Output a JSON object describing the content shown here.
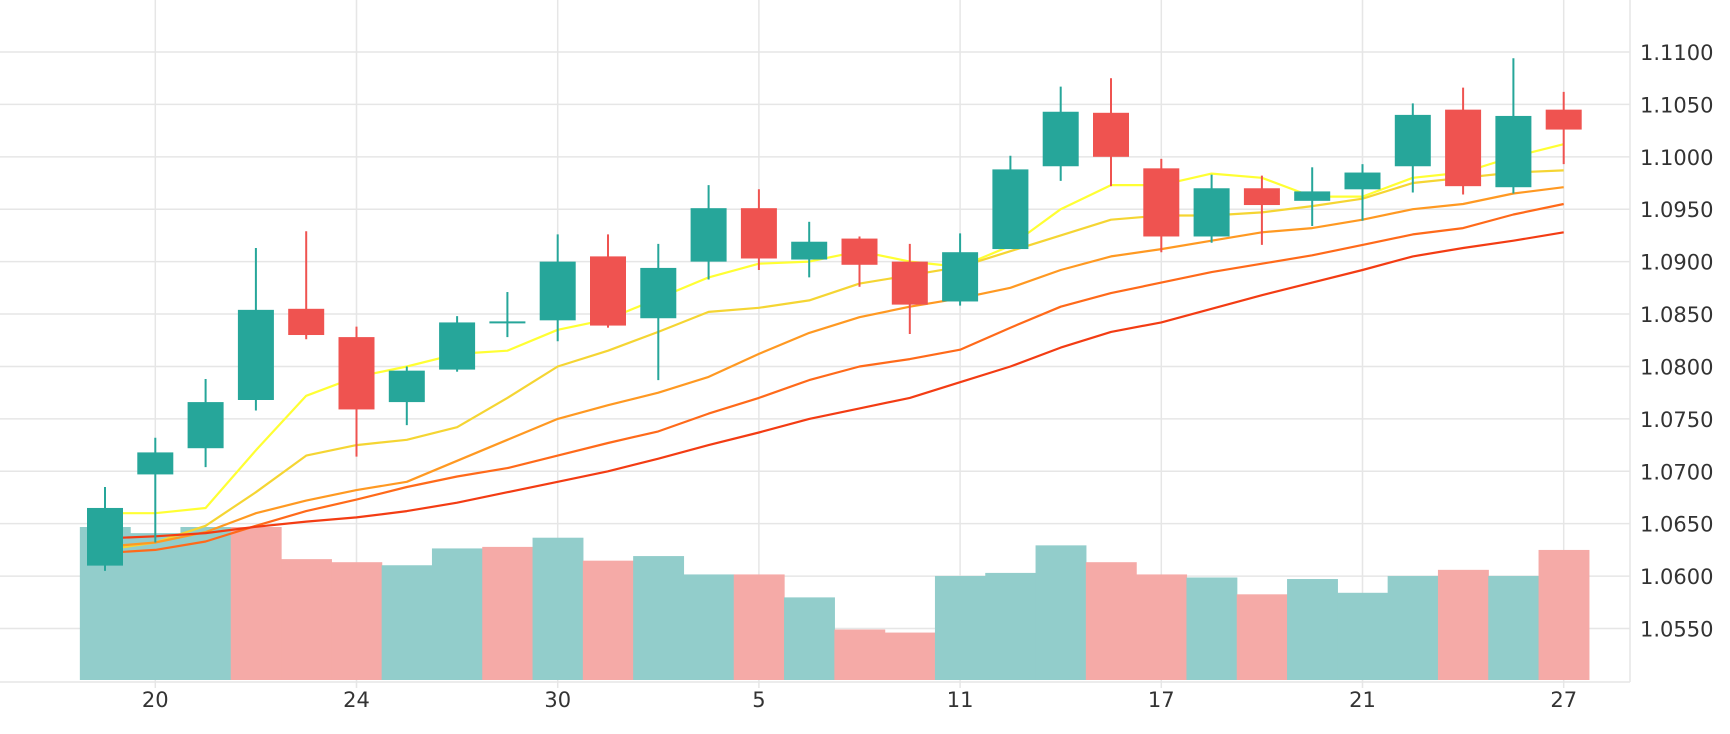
{
  "colors": {
    "up": "#26a69a",
    "down": "#ef5350",
    "volume_up": "#92cdcb",
    "volume_down": "#f5aaa7",
    "grid": "#e6e6e6",
    "ma1": "#ffff33",
    "ma2": "#f5d533",
    "ma3": "#ff9922",
    "ma4": "#ff6a1a",
    "ma5": "#f33c13"
  },
  "chart_data": {
    "type": "candlestick",
    "grid": true,
    "y_ticks": [
      "1.0550",
      "1.0600",
      "1.0650",
      "1.0700",
      "1.0750",
      "1.0800",
      "1.0850",
      "1.0900",
      "1.0950",
      "1.1000",
      "1.1050",
      "1.1100"
    ],
    "ylim": [
      1.05,
      1.115
    ],
    "x_ticks": [
      {
        "label": "20",
        "index": 1
      },
      {
        "label": "24",
        "index": 5
      },
      {
        "label": "30",
        "index": 9
      },
      {
        "label": "5",
        "index": 13
      },
      {
        "label": "11",
        "index": 17
      },
      {
        "label": "17",
        "index": 21
      },
      {
        "label": "21",
        "index": 25
      },
      {
        "label": "27",
        "index": 29
      }
    ],
    "candles": [
      {
        "o": 1.061,
        "h": 1.0685,
        "l": 1.0605,
        "c": 1.0665
      },
      {
        "o": 1.0697,
        "h": 1.0732,
        "l": 1.0632,
        "c": 1.0718
      },
      {
        "o": 1.0722,
        "h": 1.0788,
        "l": 1.0704,
        "c": 1.0766
      },
      {
        "o": 1.0768,
        "h": 1.0913,
        "l": 1.0758,
        "c": 1.0854
      },
      {
        "o": 1.0855,
        "h": 1.0929,
        "l": 1.0826,
        "c": 1.083
      },
      {
        "o": 1.0828,
        "h": 1.0838,
        "l": 1.0714,
        "c": 1.0759
      },
      {
        "o": 1.0766,
        "h": 1.08,
        "l": 1.0744,
        "c": 1.0796
      },
      {
        "o": 1.0797,
        "h": 1.0848,
        "l": 1.0795,
        "c": 1.0842
      },
      {
        "o": 1.0843,
        "h": 1.0871,
        "l": 1.0828,
        "c": 1.0843
      },
      {
        "o": 1.0844,
        "h": 1.0926,
        "l": 1.0824,
        "c": 1.09
      },
      {
        "o": 1.0905,
        "h": 1.0926,
        "l": 1.0837,
        "c": 1.0839
      },
      {
        "o": 1.0846,
        "h": 1.0917,
        "l": 1.0787,
        "c": 1.0894
      },
      {
        "o": 1.09,
        "h": 1.0973,
        "l": 1.0883,
        "c": 1.0951
      },
      {
        "o": 1.0951,
        "h": 1.0969,
        "l": 1.0892,
        "c": 1.0903
      },
      {
        "o": 1.0902,
        "h": 1.0938,
        "l": 1.0885,
        "c": 1.0919
      },
      {
        "o": 1.0922,
        "h": 1.0924,
        "l": 1.0876,
        "c": 1.0897
      },
      {
        "o": 1.09,
        "h": 1.0917,
        "l": 1.0831,
        "c": 1.0859
      },
      {
        "o": 1.0862,
        "h": 1.0927,
        "l": 1.0858,
        "c": 1.0909
      },
      {
        "o": 1.0912,
        "h": 1.1001,
        "l": 1.0912,
        "c": 1.0988
      },
      {
        "o": 1.0991,
        "h": 1.1067,
        "l": 1.0977,
        "c": 1.1043
      },
      {
        "o": 1.1042,
        "h": 1.1075,
        "l": 1.0972,
        "c": 1.1
      },
      {
        "o": 1.0989,
        "h": 1.0998,
        "l": 1.0909,
        "c": 1.0924
      },
      {
        "o": 1.0924,
        "h": 1.0983,
        "l": 1.0918,
        "c": 1.097
      },
      {
        "o": 1.097,
        "h": 1.0982,
        "l": 1.0916,
        "c": 1.0954
      },
      {
        "o": 1.0958,
        "h": 1.099,
        "l": 1.0934,
        "c": 1.0967
      },
      {
        "o": 1.0969,
        "h": 1.0993,
        "l": 1.0939,
        "c": 1.0985
      },
      {
        "o": 1.0991,
        "h": 1.1051,
        "l": 1.0966,
        "c": 1.104
      },
      {
        "o": 1.1045,
        "h": 1.1066,
        "l": 1.0964,
        "c": 1.0972
      },
      {
        "o": 1.0971,
        "h": 1.1094,
        "l": 1.0965,
        "c": 1.1039
      },
      {
        "o": 1.1045,
        "h": 1.1062,
        "l": 1.0993,
        "c": 1.1026
      }
    ],
    "volume": {
      "max": 100,
      "values": [
        100,
        96,
        100,
        100,
        79,
        77,
        75,
        86,
        87,
        93,
        78,
        81,
        69,
        69,
        54,
        33,
        31,
        68,
        70,
        88,
        77,
        69,
        67,
        56,
        66,
        57,
        68,
        72,
        68,
        85
      ],
      "directions": [
        "up",
        "up",
        "up",
        "down",
        "down",
        "down",
        "up",
        "up",
        "down",
        "up",
        "down",
        "up",
        "up",
        "down",
        "up",
        "down",
        "down",
        "up",
        "up",
        "up",
        "down",
        "down",
        "up",
        "down",
        "up",
        "up",
        "up",
        "down",
        "up",
        "down"
      ]
    },
    "moving_averages": [
      {
        "color_key": "ma1",
        "values": [
          1.066,
          1.066,
          1.0665,
          1.072,
          1.0772,
          1.079,
          1.08,
          1.0812,
          1.0815,
          1.0835,
          1.0845,
          1.0865,
          1.0885,
          1.0898,
          1.09,
          1.091,
          1.09,
          1.0895,
          1.0915,
          1.095,
          1.0973,
          1.0973,
          1.0984,
          1.098,
          1.0962,
          1.0962,
          1.098,
          1.0985,
          1.1,
          1.1012
        ]
      },
      {
        "color_key": "ma2",
        "values": [
          1.0625,
          1.0632,
          1.0648,
          1.068,
          1.0715,
          1.0725,
          1.073,
          1.0742,
          1.077,
          1.08,
          1.0815,
          1.0833,
          1.0852,
          1.0856,
          1.0863,
          1.0879,
          1.0887,
          1.0895,
          1.091,
          1.0925,
          1.094,
          1.0944,
          1.0944,
          1.0947,
          1.0953,
          1.096,
          1.0975,
          1.098,
          1.0985,
          1.0987
        ]
      },
      {
        "color_key": "ma3",
        "values": [
          1.0628,
          1.0632,
          1.0642,
          1.066,
          1.0672,
          1.0682,
          1.069,
          1.071,
          1.073,
          1.075,
          1.0763,
          1.0775,
          1.079,
          1.0812,
          1.0832,
          1.0847,
          1.0857,
          1.0865,
          1.0875,
          1.0892,
          1.0905,
          1.0912,
          1.092,
          1.0928,
          1.0932,
          1.094,
          1.095,
          1.0955,
          1.0965,
          1.0971
        ]
      },
      {
        "color_key": "ma4",
        "values": [
          1.0622,
          1.0625,
          1.0633,
          1.0648,
          1.0662,
          1.0673,
          1.0685,
          1.0695,
          1.0703,
          1.0715,
          1.0727,
          1.0738,
          1.0755,
          1.077,
          1.0787,
          1.08,
          1.0807,
          1.0816,
          1.0837,
          1.0857,
          1.087,
          1.088,
          1.089,
          1.0898,
          1.0906,
          1.0916,
          1.0926,
          1.0932,
          1.0945,
          1.0955
        ]
      },
      {
        "color_key": "ma5",
        "values": [
          1.0636,
          1.0638,
          1.0641,
          1.0647,
          1.0652,
          1.0656,
          1.0662,
          1.067,
          1.068,
          1.069,
          1.07,
          1.0712,
          1.0725,
          1.0737,
          1.075,
          1.076,
          1.077,
          1.0785,
          1.08,
          1.0818,
          1.0833,
          1.0842,
          1.0855,
          1.0868,
          1.088,
          1.0892,
          1.0905,
          1.0913,
          1.092,
          1.0928
        ]
      }
    ]
  }
}
